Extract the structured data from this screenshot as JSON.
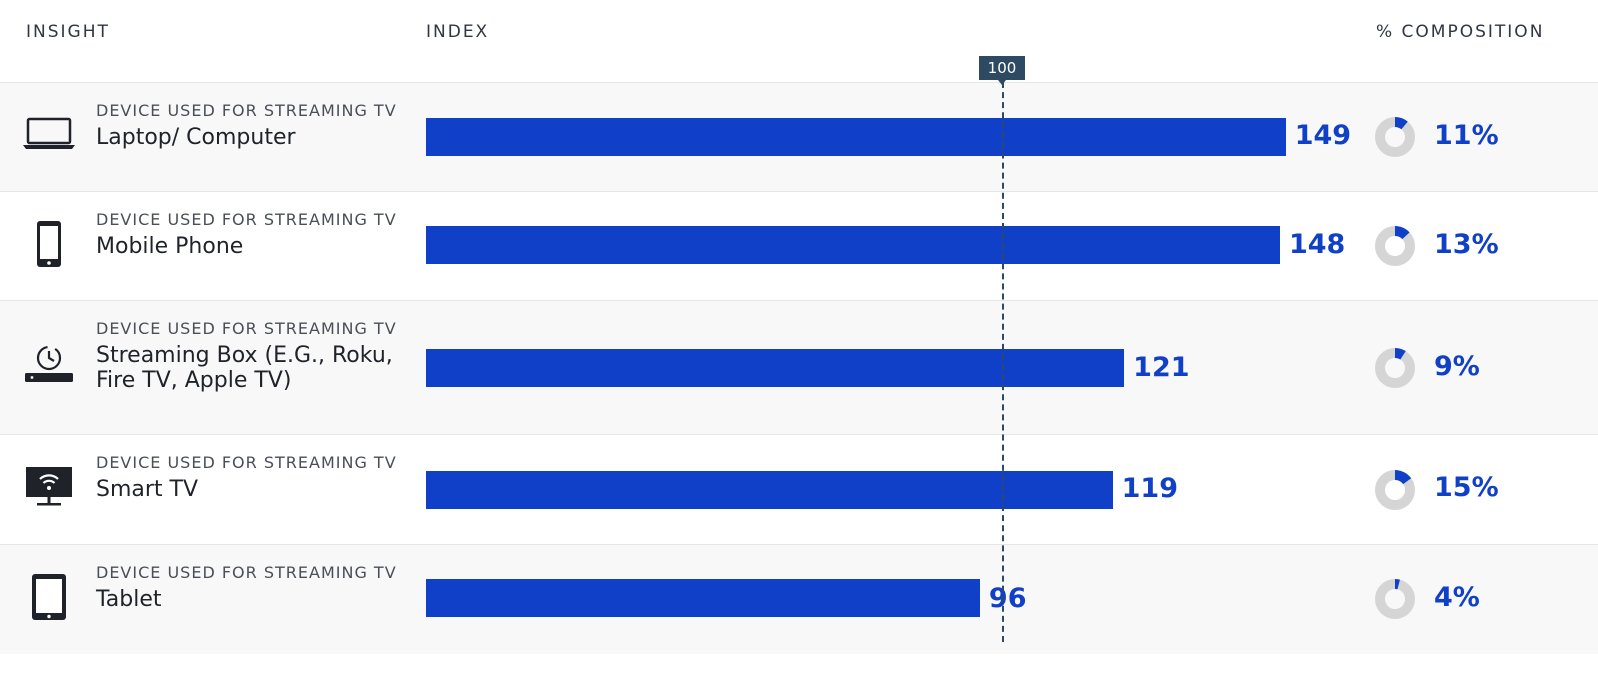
{
  "headers": {
    "insight": "INSIGHT",
    "index": "INDEX",
    "composition": "% COMPOSITION"
  },
  "reference": {
    "label": "100",
    "value": 100
  },
  "chart_data": {
    "type": "bar",
    "orientation": "horizontal",
    "categories": [
      "Laptop/ Computer",
      "Mobile Phone",
      "Streaming Box (E.G., Roku, Fire TV, Apple TV)",
      "Smart TV",
      "Tablet"
    ],
    "series": [
      {
        "values": [
          149,
          148,
          121,
          119,
          96
        ]
      }
    ],
    "composition_percent": [
      11,
      13,
      9,
      15,
      4
    ],
    "reference_line": 100,
    "colors": {
      "bar": "#1140c8",
      "reference": "#2e4a63",
      "donut_track": "#d5d5d5"
    }
  },
  "rows": [
    {
      "category": "DEVICE USED FOR STREAMING TV",
      "name": "Laptop/ Computer",
      "index_label": "149",
      "pct_label": "11%",
      "icon": "laptop-icon"
    },
    {
      "category": "DEVICE USED FOR STREAMING TV",
      "name": "Mobile Phone",
      "index_label": "148",
      "pct_label": "13%",
      "icon": "mobile-phone-icon"
    },
    {
      "category": "DEVICE USED FOR STREAMING TV",
      "name": "Streaming Box (E.G., Roku, Fire TV, Apple TV)",
      "index_label": "121",
      "pct_label": "9%",
      "icon": "streaming-box-icon"
    },
    {
      "category": "DEVICE USED FOR STREAMING TV",
      "name": "Smart TV",
      "index_label": "119",
      "pct_label": "15%",
      "icon": "smart-tv-icon"
    },
    {
      "category": "DEVICE USED FOR STREAMING TV",
      "name": "Tablet",
      "index_label": "96",
      "pct_label": "4%",
      "icon": "tablet-icon"
    }
  ]
}
